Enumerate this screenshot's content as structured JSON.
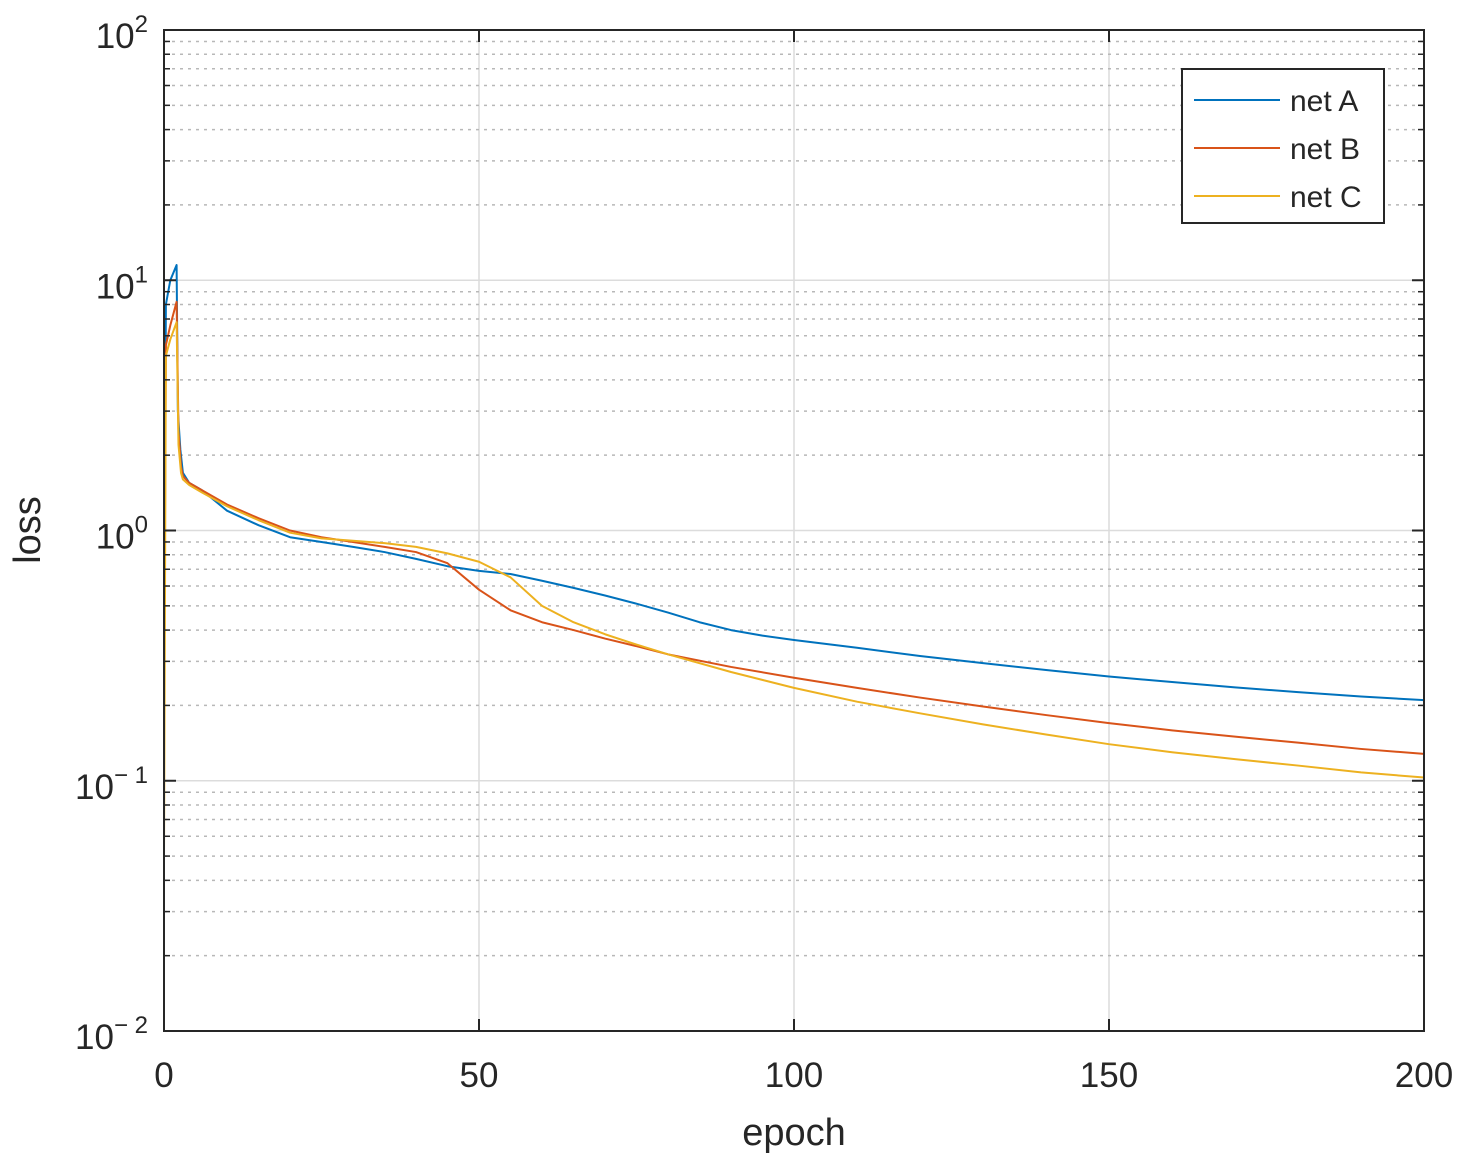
{
  "chart_data": {
    "type": "line",
    "xlabel": "epoch",
    "ylabel": "loss",
    "xlim": [
      0,
      200
    ],
    "ylim": [
      0.01,
      100
    ],
    "yscale": "log",
    "grid": true,
    "minor_grid": true,
    "legend_position": "top-right",
    "x_ticks": [
      0,
      50,
      100,
      150,
      200
    ],
    "x_tick_labels": [
      "0",
      "50",
      "100",
      "150",
      "200"
    ],
    "y_ticks": [
      0.01,
      0.1,
      1,
      10,
      100
    ],
    "y_tick_labels": [
      {
        "base": "10",
        "exp": "− 2"
      },
      {
        "base": "10",
        "exp": "− 1"
      },
      {
        "base": "10",
        "exp": "0"
      },
      {
        "base": "10",
        "exp": "1"
      },
      {
        "base": "10",
        "exp": "2"
      }
    ],
    "series": [
      {
        "name": "net A",
        "color": "#0072BD",
        "points": [
          [
            0,
            0.3
          ],
          [
            0.3,
            8
          ],
          [
            1,
            10
          ],
          [
            2,
            11.5
          ],
          [
            2.2,
            3
          ],
          [
            2.6,
            2.1
          ],
          [
            3,
            1.7
          ],
          [
            4,
            1.55
          ],
          [
            6,
            1.45
          ],
          [
            10,
            1.2
          ],
          [
            15,
            1.05
          ],
          [
            20,
            0.94
          ],
          [
            25,
            0.9
          ],
          [
            30,
            0.86
          ],
          [
            35,
            0.82
          ],
          [
            40,
            0.77
          ],
          [
            45,
            0.72
          ],
          [
            50,
            0.69
          ],
          [
            55,
            0.67
          ],
          [
            60,
            0.63
          ],
          [
            65,
            0.59
          ],
          [
            70,
            0.55
          ],
          [
            75,
            0.51
          ],
          [
            80,
            0.47
          ],
          [
            85,
            0.43
          ],
          [
            90,
            0.4
          ],
          [
            95,
            0.38
          ],
          [
            100,
            0.365
          ],
          [
            110,
            0.34
          ],
          [
            120,
            0.315
          ],
          [
            130,
            0.295
          ],
          [
            140,
            0.277
          ],
          [
            150,
            0.261
          ],
          [
            160,
            0.248
          ],
          [
            170,
            0.236
          ],
          [
            180,
            0.226
          ],
          [
            190,
            0.217
          ],
          [
            200,
            0.21
          ]
        ]
      },
      {
        "name": "net B",
        "color": "#D95319",
        "points": [
          [
            0,
            0.2
          ],
          [
            0.3,
            5.5
          ],
          [
            1,
            6.6
          ],
          [
            2,
            8.2
          ],
          [
            2.3,
            2.5
          ],
          [
            2.7,
            1.8
          ],
          [
            3,
            1.65
          ],
          [
            4,
            1.55
          ],
          [
            6,
            1.45
          ],
          [
            10,
            1.27
          ],
          [
            15,
            1.12
          ],
          [
            20,
            1.0
          ],
          [
            25,
            0.94
          ],
          [
            30,
            0.9
          ],
          [
            35,
            0.86
          ],
          [
            40,
            0.82
          ],
          [
            45,
            0.74
          ],
          [
            50,
            0.58
          ],
          [
            55,
            0.48
          ],
          [
            60,
            0.43
          ],
          [
            65,
            0.4
          ],
          [
            70,
            0.37
          ],
          [
            75,
            0.345
          ],
          [
            80,
            0.32
          ],
          [
            90,
            0.285
          ],
          [
            100,
            0.258
          ],
          [
            110,
            0.235
          ],
          [
            120,
            0.215
          ],
          [
            130,
            0.198
          ],
          [
            140,
            0.183
          ],
          [
            150,
            0.17
          ],
          [
            160,
            0.159
          ],
          [
            170,
            0.15
          ],
          [
            180,
            0.142
          ],
          [
            190,
            0.134
          ],
          [
            200,
            0.128
          ]
        ]
      },
      {
        "name": "net C",
        "color": "#EDB120",
        "points": [
          [
            0,
            0.05
          ],
          [
            0.3,
            5
          ],
          [
            1,
            5.8
          ],
          [
            2,
            6.8
          ],
          [
            2.3,
            2.2
          ],
          [
            2.7,
            1.7
          ],
          [
            3,
            1.6
          ],
          [
            4,
            1.52
          ],
          [
            6,
            1.42
          ],
          [
            10,
            1.25
          ],
          [
            15,
            1.1
          ],
          [
            20,
            0.98
          ],
          [
            25,
            0.93
          ],
          [
            30,
            0.91
          ],
          [
            35,
            0.89
          ],
          [
            40,
            0.86
          ],
          [
            45,
            0.81
          ],
          [
            50,
            0.75
          ],
          [
            55,
            0.65
          ],
          [
            60,
            0.5
          ],
          [
            65,
            0.43
          ],
          [
            70,
            0.385
          ],
          [
            75,
            0.35
          ],
          [
            80,
            0.32
          ],
          [
            90,
            0.272
          ],
          [
            100,
            0.235
          ],
          [
            110,
            0.207
          ],
          [
            120,
            0.186
          ],
          [
            130,
            0.168
          ],
          [
            140,
            0.153
          ],
          [
            150,
            0.14
          ],
          [
            160,
            0.13
          ],
          [
            170,
            0.122
          ],
          [
            180,
            0.115
          ],
          [
            190,
            0.108
          ],
          [
            200,
            0.103
          ]
        ]
      }
    ]
  }
}
